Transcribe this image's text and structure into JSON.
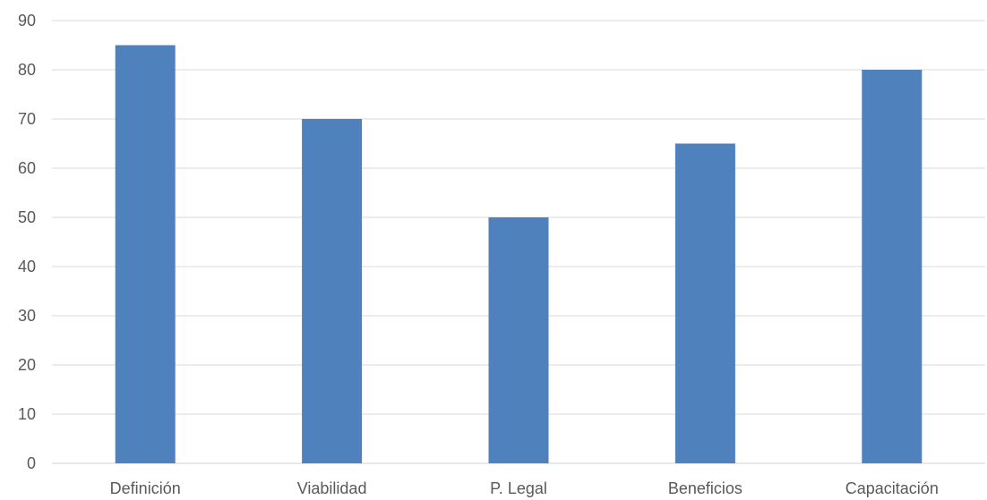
{
  "chart_data": {
    "type": "bar",
    "categories": [
      "Definición",
      "Viabilidad",
      "P. Legal",
      "Beneficios",
      "Capacitación"
    ],
    "values": [
      85,
      70,
      50,
      65,
      80
    ],
    "title": "",
    "xlabel": "",
    "ylabel": "",
    "ylim": [
      0,
      90
    ],
    "yticks": [
      0,
      10,
      20,
      30,
      40,
      50,
      60,
      70,
      80,
      90
    ],
    "grid": true,
    "legend": "none",
    "bar_color": "#4f81bd"
  }
}
